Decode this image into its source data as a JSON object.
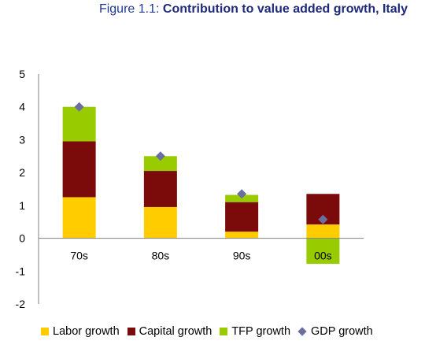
{
  "figure": {
    "prefix": "Figure 1.1: ",
    "title": "Contribution to value added growth, Italy"
  },
  "colors": {
    "labor": "#ffcc00",
    "capital": "#7b0b0b",
    "tfp": "#99cc00",
    "gdp": "#6a6fa0",
    "axis": "#808080"
  },
  "chart_data": {
    "type": "bar",
    "stacked": true,
    "title": "Contribution to value added growth, Italy",
    "categories": [
      "70s",
      "80s",
      "90s",
      "00s"
    ],
    "ylim": [
      -2,
      5
    ],
    "yticks": [
      -2,
      -1,
      0,
      1,
      2,
      3,
      4,
      5
    ],
    "grid": false,
    "legend_position": "bottom",
    "series": [
      {
        "name": "Labor growth",
        "type": "bar",
        "values": [
          1.25,
          0.95,
          0.2,
          0.42
        ]
      },
      {
        "name": "Capital growth",
        "type": "bar",
        "values": [
          1.7,
          1.1,
          0.9,
          0.93
        ]
      },
      {
        "name": "TFP growth",
        "type": "bar",
        "values": [
          1.05,
          0.45,
          0.22,
          -0.78
        ]
      },
      {
        "name": "GDP growth",
        "type": "marker",
        "values": [
          4.0,
          2.5,
          1.35,
          0.57
        ]
      }
    ]
  }
}
